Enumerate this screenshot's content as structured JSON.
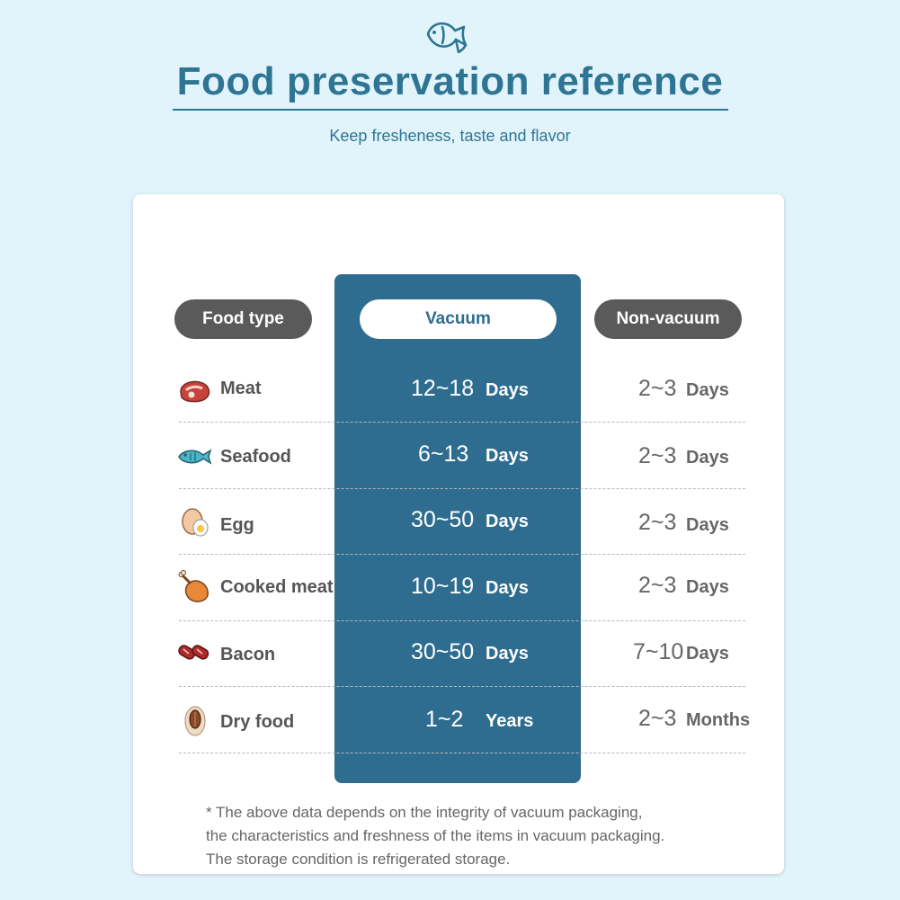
{
  "header": {
    "title": "Food preservation reference",
    "subtitle": "Keep fresheness, taste and flavor",
    "logo_icon": "fish-outline-icon"
  },
  "table": {
    "columns": {
      "food_type": "Food type",
      "vacuum": "Vacuum",
      "non_vacuum": "Non-vacuum"
    },
    "rows": [
      {
        "food": "Meat",
        "icon": "meat-steak-icon",
        "vacuum_value": "12~18",
        "vacuum_unit": "Days",
        "non_vacuum_value": "2~3",
        "non_vacuum_unit": "Days"
      },
      {
        "food": "Seafood",
        "icon": "fish-icon",
        "vacuum_value": "6~13",
        "vacuum_unit": "Days",
        "non_vacuum_value": "2~3",
        "non_vacuum_unit": "Days"
      },
      {
        "food": "Egg",
        "icon": "egg-icon",
        "vacuum_value": "30~50",
        "vacuum_unit": "Days",
        "non_vacuum_value": "2~3",
        "non_vacuum_unit": "Days"
      },
      {
        "food": "Cooked meat",
        "icon": "chicken-leg-icon",
        "vacuum_value": "10~19",
        "vacuum_unit": "Days",
        "non_vacuum_value": "2~3",
        "non_vacuum_unit": "Days"
      },
      {
        "food": "Bacon",
        "icon": "bacon-sausage-icon",
        "vacuum_value": "30~50",
        "vacuum_unit": "Days",
        "non_vacuum_value": "7~10",
        "non_vacuum_unit": "Days"
      },
      {
        "food": "Dry food",
        "icon": "nut-seed-icon",
        "vacuum_value": "1~2",
        "vacuum_unit": "Years",
        "non_vacuum_value": "2~3",
        "non_vacuum_unit": "Months"
      }
    ]
  },
  "footnote": {
    "line1": "* The above data depends on the integrity of vacuum packaging,",
    "line2": "the characteristics and freshness of the items in vacuum packaging.",
    "line3": "The storage condition is refrigerated storage."
  },
  "colors": {
    "background": "#e2f4fb",
    "accent": "#2e7593",
    "vacuum_column": "#2e6d90",
    "header_pill": "#5a5a5a",
    "card": "#ffffff"
  }
}
